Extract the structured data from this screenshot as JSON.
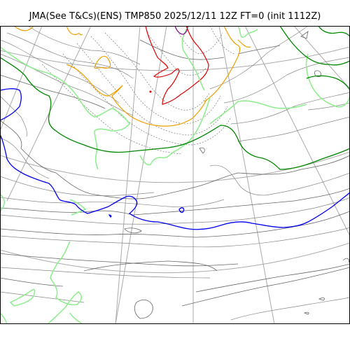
{
  "title": "JMA(See T&Cs)(ENS) TMP850 2025/12/11 12Z FT=0 (init 1112Z)",
  "colors": {
    "background": "#ffffff",
    "frame": "#000000",
    "graticule": "#aaaaaa",
    "coastline": "#666666",
    "isotherm_light": "#888888",
    "isotherm_dotted": "#777777",
    "isotherm_red": "#e00000",
    "isotherm_orange": "#f0a000",
    "isotherm_lightgreen": "#90ee90",
    "isotherm_green": "#008800",
    "isotherm_blue": "#0000ee",
    "isotherm_purple": "#880088"
  }
}
